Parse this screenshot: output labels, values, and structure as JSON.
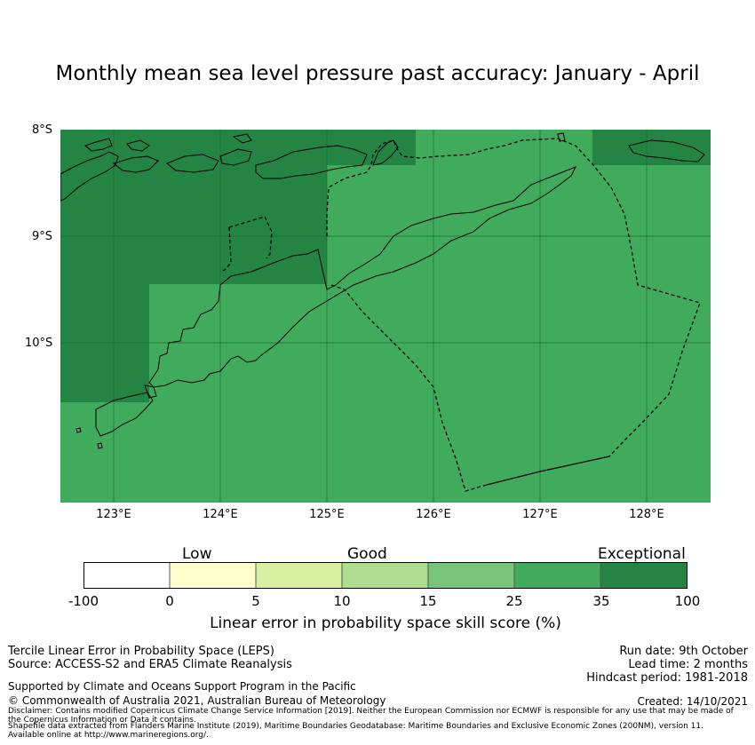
{
  "title": "Monthly mean sea level pressure past accuracy: January - April",
  "map": {
    "lat_labels": [
      "8°S",
      "9°S",
      "10°S"
    ],
    "lon_labels": [
      "123°E",
      "124°E",
      "125°E",
      "126°E",
      "127°E",
      "128°E"
    ],
    "colors": {
      "good_high": "#41ab5d",
      "exceptional": "#238443",
      "line": "#000000"
    }
  },
  "legend": {
    "categories": [
      "Low",
      "Good",
      "Exceptional"
    ],
    "ticks": [
      "-100",
      "0",
      "5",
      "10",
      "15",
      "25",
      "35",
      "100"
    ],
    "colors": [
      "#ffffff",
      "#ffffcc",
      "#d9f0a3",
      "#addd8e",
      "#78c679",
      "#41ab5d",
      "#238443"
    ],
    "label": "Linear error in probability space skill score (%)"
  },
  "info_left": {
    "line1": "Tercile Linear Error in Probability Space (LEPS)",
    "line2": "Source: ACCESS-S2 and ERA5 Climate Reanalysis",
    "line3": "Supported by Climate and Oceans Support Program in the Pacific",
    "line4": "© Commonwealth of Australia 2021, Australian Bureau of Meteorology"
  },
  "info_right": {
    "run_date": "Run date: 9th October",
    "lead_time": "Lead time: 2 months",
    "hindcast": "Hindcast period: 1981-2018",
    "created": "Created: 14/10/2021"
  },
  "disclaimer": {
    "line1": "Disclaimer: Contains modified Copernicus Climate Change Service Information [2019]. Neither the European Commission nor ECMWF is responsible for any use that may be made of",
    "line2": "the Copernicus Information or Data it contains.",
    "line3": "Shapefile data extracted from Flanders Marine Institute (2019), Maritime Boundaries Geodatabase: Maritime Boundaries and Exclusive Economic Zones (200NM), version 11.",
    "line4": "Available online at http://www.marineregions.org/."
  }
}
